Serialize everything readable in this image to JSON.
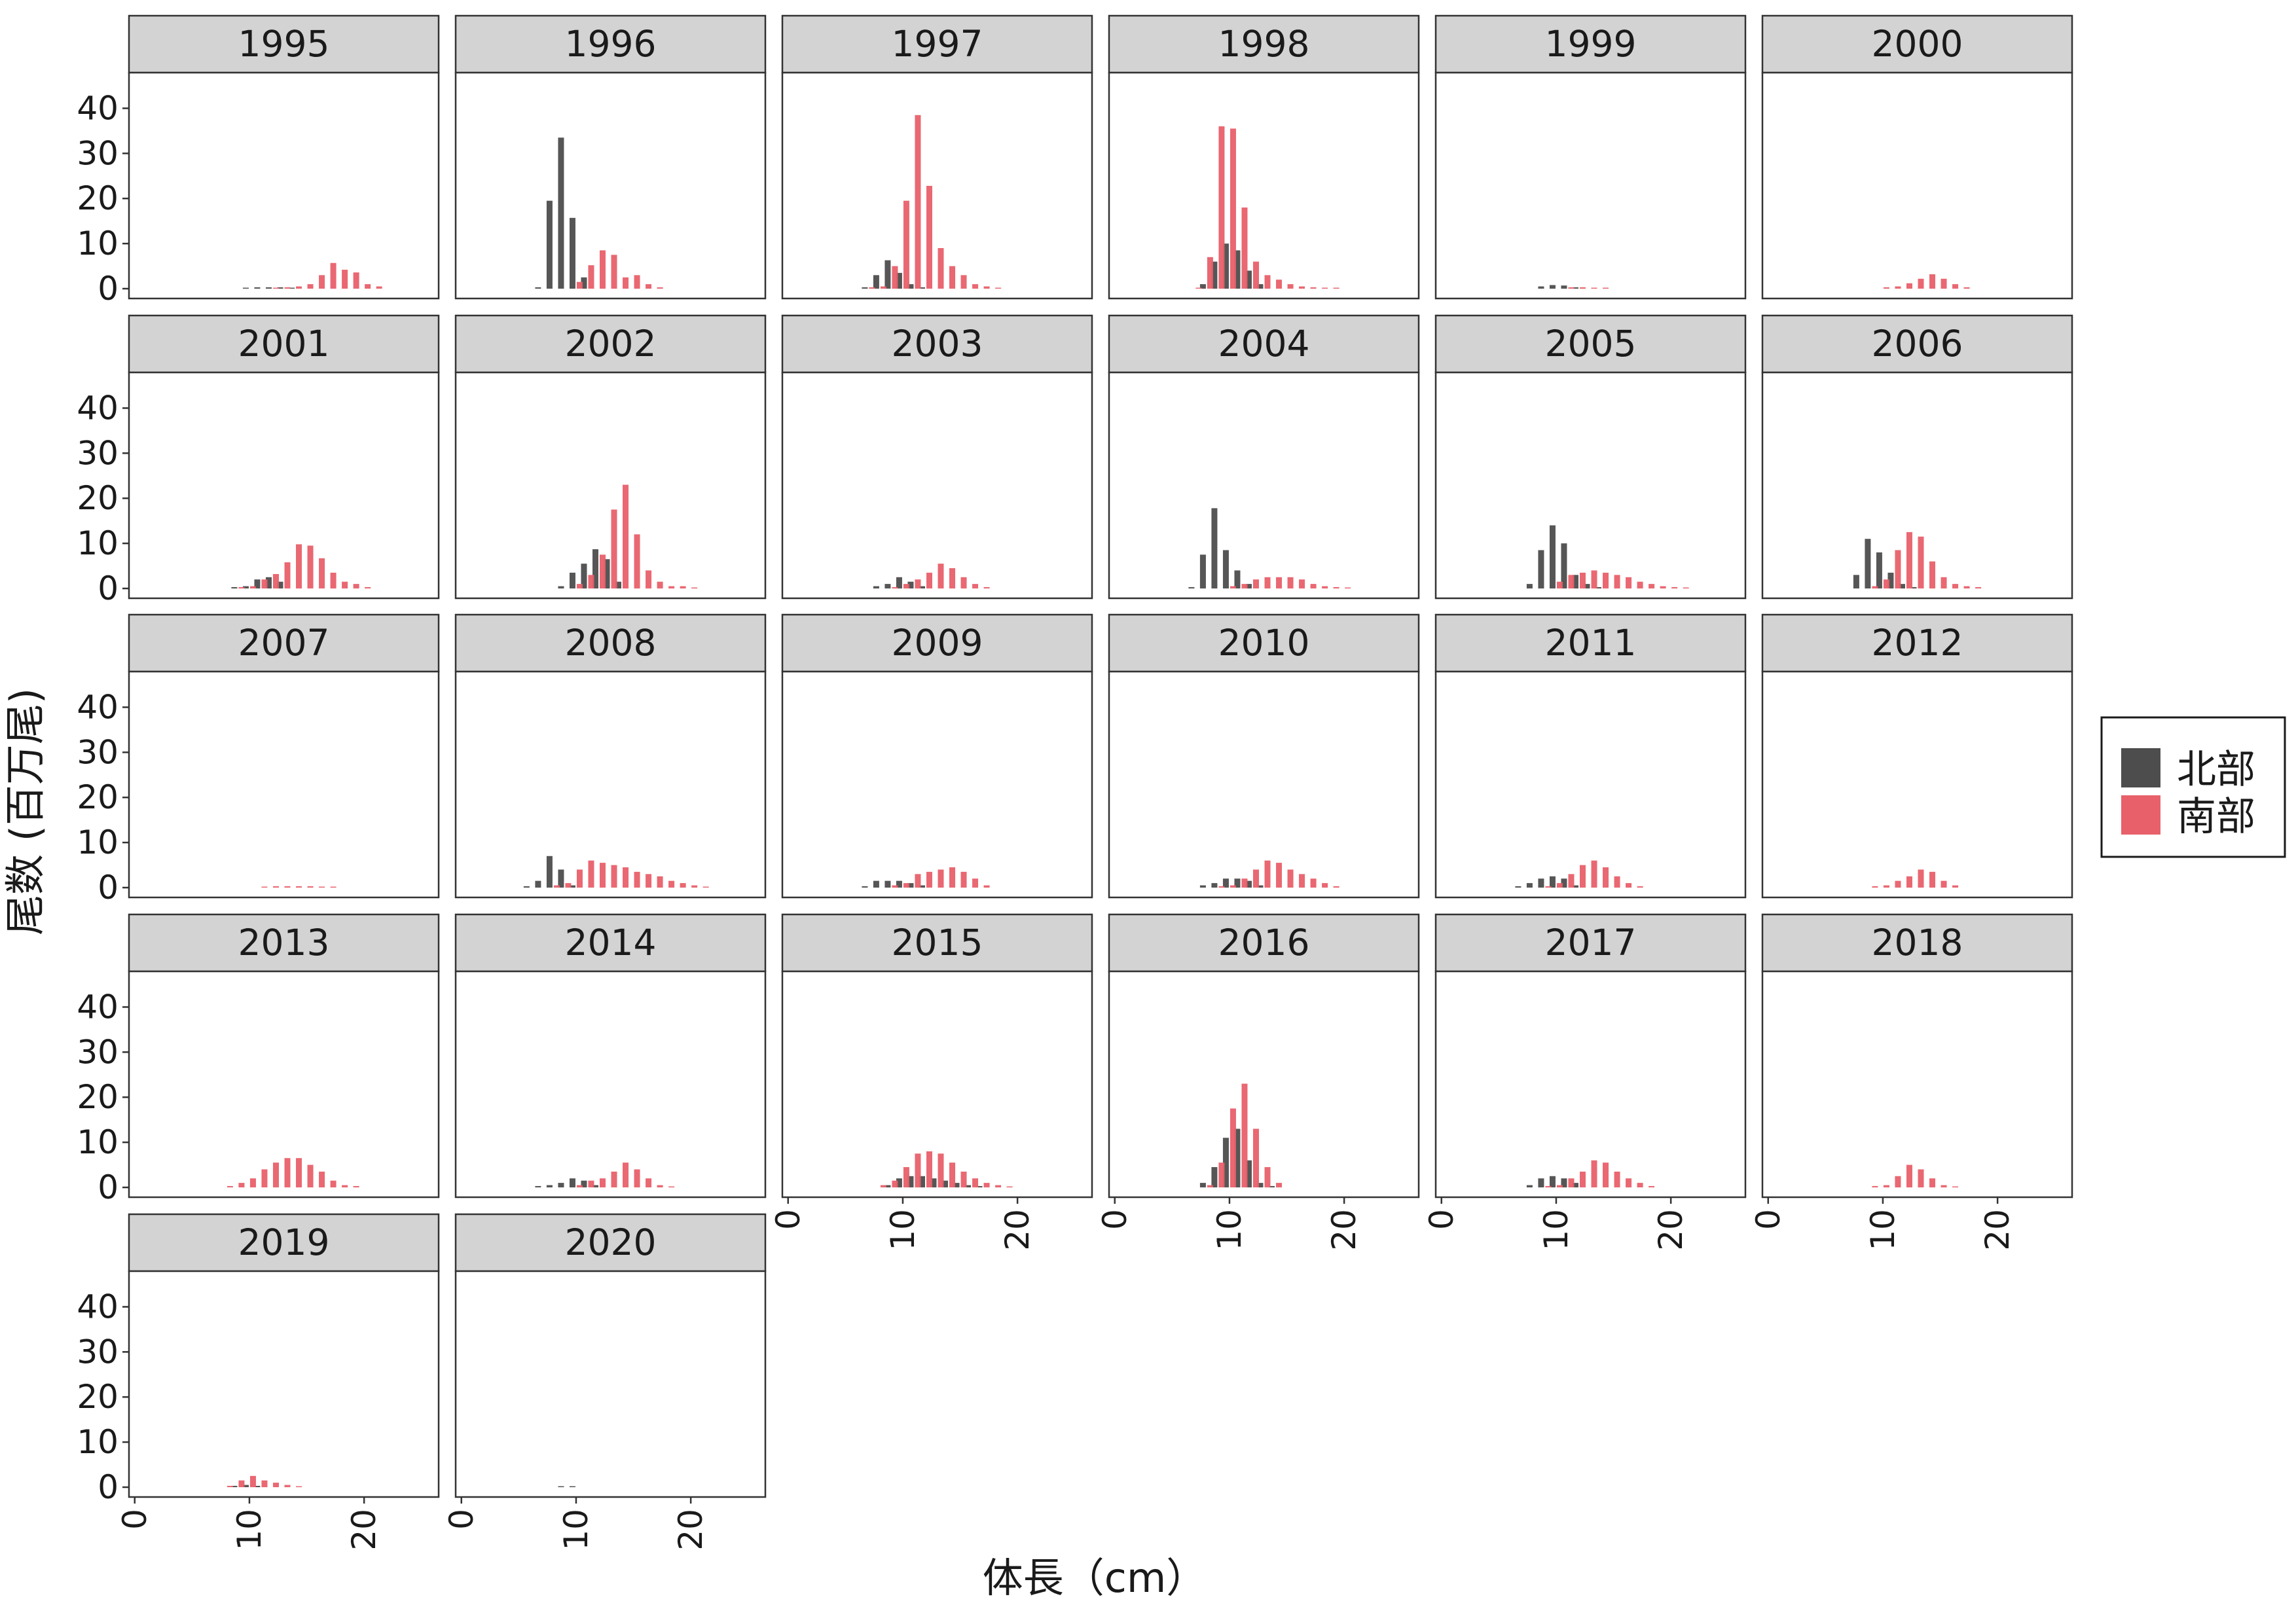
{
  "chart_data": {
    "type": "bar",
    "xlabel": "体長（cm）",
    "ylabel": "尾数 (百万尾)",
    "ylim": [
      0,
      45
    ],
    "xlim": [
      -0.5,
      26.5
    ],
    "y_ticks": [
      "0",
      "10",
      "20",
      "30",
      "40"
    ],
    "x_ticks": [
      "0",
      "10",
      "20"
    ],
    "legend": {
      "position": "right",
      "entries": [
        "北部",
        "南部"
      ]
    },
    "series_colors": {
      "北部": "#4d4d4d",
      "南部": "#e8606a"
    },
    "grid": false,
    "panels": [
      {
        "year": "1995",
        "north": {
          "x": [
            10,
            11,
            12,
            13,
            14
          ],
          "y": [
            0.2,
            0.3,
            0.3,
            0.3,
            0.2
          ]
        },
        "south": {
          "x": [
            12,
            13,
            14,
            15,
            16,
            17,
            18,
            19,
            20,
            21
          ],
          "y": [
            0.2,
            0.3,
            0.5,
            1,
            3,
            5.7,
            4.2,
            3.6,
            1,
            0.5
          ]
        }
      },
      {
        "year": "1996",
        "north": {
          "x": [
            7,
            8,
            9,
            10,
            11
          ],
          "y": [
            0.3,
            19.5,
            33.5,
            15.7,
            2.5
          ]
        },
        "south": {
          "x": [
            10,
            11,
            12,
            13,
            14,
            15,
            16,
            17
          ],
          "y": [
            1.5,
            5.2,
            8.5,
            7.5,
            2.5,
            3,
            1,
            0.3
          ]
        }
      },
      {
        "year": "1997",
        "north": {
          "x": [
            7,
            8,
            9,
            10,
            11,
            12
          ],
          "y": [
            0.3,
            3,
            6.3,
            3.5,
            1,
            0.3
          ]
        },
        "south": {
          "x": [
            7,
            8,
            9,
            10,
            11,
            12,
            13,
            14,
            15,
            16,
            17,
            18
          ],
          "y": [
            0.3,
            0.5,
            5,
            19.5,
            38.5,
            22.8,
            9,
            5,
            3,
            1,
            0.5,
            0.2
          ]
        }
      },
      {
        "year": "1998",
        "north": {
          "x": [
            8,
            9,
            10,
            11,
            12,
            13
          ],
          "y": [
            1,
            6,
            10,
            8.5,
            4,
            1
          ]
        },
        "south": {
          "x": [
            7,
            8,
            9,
            10,
            11,
            12,
            13,
            14,
            15,
            16,
            17,
            18,
            19
          ],
          "y": [
            0.2,
            7,
            36,
            35.5,
            18,
            6,
            3,
            2,
            1,
            0.5,
            0.3,
            0.2,
            0.1
          ]
        }
      },
      {
        "year": "1999",
        "north": {
          "x": [
            9,
            10,
            11,
            12
          ],
          "y": [
            0.5,
            0.8,
            0.7,
            0.3
          ]
        },
        "south": {
          "x": [
            11,
            12,
            13,
            14
          ],
          "y": [
            0.3,
            0.3,
            0.2,
            0.1
          ]
        }
      },
      {
        "year": "2000",
        "north": {
          "x": [],
          "y": []
        },
        "south": {
          "x": [
            10,
            11,
            12,
            13,
            14,
            15,
            16,
            17
          ],
          "y": [
            0.3,
            0.5,
            1.2,
            2.2,
            3.2,
            2.2,
            1,
            0.3
          ]
        }
      },
      {
        "year": "2001",
        "north": {
          "x": [
            9,
            10,
            11,
            12,
            13
          ],
          "y": [
            0.3,
            0.5,
            2,
            2.5,
            1.5
          ]
        },
        "south": {
          "x": [
            9,
            10,
            11,
            12,
            13,
            14,
            15,
            16,
            17,
            18,
            19,
            20
          ],
          "y": [
            0.3,
            0.5,
            2,
            3.2,
            5.8,
            9.8,
            9.5,
            6.7,
            3.5,
            1.5,
            1,
            0.3
          ]
        }
      },
      {
        "year": "2002",
        "north": {
          "x": [
            9,
            10,
            11,
            12,
            13,
            14
          ],
          "y": [
            0.5,
            3.5,
            5.5,
            8.7,
            6.5,
            1.5
          ]
        },
        "south": {
          "x": [
            10,
            11,
            12,
            13,
            14,
            15,
            16,
            17,
            18,
            19,
            20
          ],
          "y": [
            1,
            3,
            7.5,
            17.5,
            23,
            12,
            4,
            1.5,
            0.5,
            0.5,
            0.2
          ]
        }
      },
      {
        "year": "2003",
        "north": {
          "x": [
            8,
            9,
            10,
            11,
            12
          ],
          "y": [
            0.5,
            1,
            2.5,
            1.5,
            0.5
          ]
        },
        "south": {
          "x": [
            9,
            10,
            11,
            12,
            13,
            14,
            15,
            16,
            17
          ],
          "y": [
            0.3,
            1,
            2,
            3.5,
            5.5,
            4.5,
            2.5,
            1,
            0.3
          ]
        }
      },
      {
        "year": "2004",
        "north": {
          "x": [
            7,
            8,
            9,
            10,
            11,
            12
          ],
          "y": [
            0.3,
            7.5,
            17.8,
            8.5,
            4,
            1
          ]
        },
        "south": {
          "x": [
            10,
            11,
            12,
            13,
            14,
            15,
            16,
            17,
            18,
            19,
            20
          ],
          "y": [
            0.5,
            1,
            2,
            2.5,
            2.5,
            2.5,
            2,
            1,
            0.5,
            0.3,
            0.2
          ]
        }
      },
      {
        "year": "2005",
        "north": {
          "x": [
            8,
            9,
            10,
            11,
            12,
            13,
            14
          ],
          "y": [
            1,
            8.5,
            14,
            10,
            3,
            1,
            0.3
          ]
        },
        "south": {
          "x": [
            10,
            11,
            12,
            13,
            14,
            15,
            16,
            17,
            18,
            19,
            20,
            21
          ],
          "y": [
            1.5,
            3,
            3.5,
            4,
            3.5,
            3,
            2.5,
            1.5,
            1,
            0.5,
            0.3,
            0.2
          ]
        }
      },
      {
        "year": "2006",
        "north": {
          "x": [
            8,
            9,
            10,
            11,
            12,
            13
          ],
          "y": [
            3,
            11,
            8,
            3.5,
            1,
            0.3
          ]
        },
        "south": {
          "x": [
            9,
            10,
            11,
            12,
            13,
            14,
            15,
            16,
            17,
            18
          ],
          "y": [
            0.5,
            2,
            8.5,
            12.5,
            11.5,
            6,
            2.5,
            1,
            0.5,
            0.3
          ]
        }
      },
      {
        "year": "2007",
        "north": {
          "x": [],
          "y": []
        },
        "south": {
          "x": [
            11,
            12,
            13,
            14,
            15,
            16,
            17
          ],
          "y": [
            0.2,
            0.3,
            0.3,
            0.3,
            0.3,
            0.2,
            0.1
          ]
        }
      },
      {
        "year": "2008",
        "north": {
          "x": [
            6,
            7,
            8,
            9,
            10
          ],
          "y": [
            0.3,
            1.5,
            7,
            4,
            0.5
          ]
        },
        "south": {
          "x": [
            8,
            9,
            10,
            11,
            12,
            13,
            14,
            15,
            16,
            17,
            18,
            19,
            20,
            21
          ],
          "y": [
            0.5,
            1,
            4,
            6,
            5.5,
            5,
            4.5,
            3.5,
            3,
            2.5,
            1.5,
            1,
            0.5,
            0.2
          ]
        }
      },
      {
        "year": "2009",
        "north": {
          "x": [
            7,
            8,
            9,
            10,
            11,
            12
          ],
          "y": [
            0.3,
            1.5,
            1.5,
            1.5,
            1,
            0.5
          ]
        },
        "south": {
          "x": [
            9,
            10,
            11,
            12,
            13,
            14,
            15,
            16,
            17
          ],
          "y": [
            0.5,
            1,
            3,
            3.5,
            4,
            4.5,
            3.5,
            2,
            0.5
          ]
        }
      },
      {
        "year": "2010",
        "north": {
          "x": [
            8,
            9,
            10,
            11,
            12,
            13
          ],
          "y": [
            0.5,
            1,
            2,
            2,
            1.5,
            0.5
          ]
        },
        "south": {
          "x": [
            9,
            10,
            11,
            12,
            13,
            14,
            15,
            16,
            17,
            18,
            19
          ],
          "y": [
            0.3,
            0.5,
            2,
            4,
            6,
            5.5,
            4,
            3,
            2,
            1,
            0.3
          ]
        }
      },
      {
        "year": "2011",
        "north": {
          "x": [
            7,
            8,
            9,
            10,
            11,
            12
          ],
          "y": [
            0.3,
            1,
            2,
            2.5,
            2,
            0.5
          ]
        },
        "south": {
          "x": [
            9,
            10,
            11,
            12,
            13,
            14,
            15,
            16,
            17
          ],
          "y": [
            0.3,
            1,
            3,
            5,
            6,
            4.5,
            2.5,
            1,
            0.3
          ]
        }
      },
      {
        "year": "2012",
        "north": {
          "x": [],
          "y": []
        },
        "south": {
          "x": [
            9,
            10,
            11,
            12,
            13,
            14,
            15,
            16
          ],
          "y": [
            0.3,
            0.5,
            1.5,
            2.5,
            4,
            3.5,
            1.5,
            0.5
          ]
        }
      },
      {
        "year": "2013",
        "north": {
          "x": [],
          "y": []
        },
        "south": {
          "x": [
            8,
            9,
            10,
            11,
            12,
            13,
            14,
            15,
            16,
            17,
            18,
            19
          ],
          "y": [
            0.3,
            1,
            2,
            4,
            5.5,
            6.5,
            6.5,
            5,
            3.5,
            1.5,
            0.5,
            0.3
          ]
        }
      },
      {
        "year": "2014",
        "north": {
          "x": [
            7,
            8,
            9,
            10,
            11,
            12
          ],
          "y": [
            0.3,
            0.5,
            1,
            2,
            1.5,
            0.5
          ]
        },
        "south": {
          "x": [
            10,
            11,
            12,
            13,
            14,
            15,
            16,
            17,
            18
          ],
          "y": [
            0.5,
            1.5,
            2,
            3.5,
            5.5,
            4,
            2,
            0.5,
            0.2
          ]
        }
      },
      {
        "year": "2015",
        "north": {
          "x": [
            9,
            10,
            11,
            12,
            13,
            14,
            15,
            16,
            17
          ],
          "y": [
            0.5,
            2,
            2.5,
            2.5,
            2,
            1.5,
            1,
            0.5,
            0.3
          ]
        },
        "south": {
          "x": [
            8,
            9,
            10,
            11,
            12,
            13,
            14,
            15,
            16,
            17,
            18,
            19
          ],
          "y": [
            0.5,
            1.5,
            4.5,
            7.5,
            8,
            7.5,
            5.5,
            3.5,
            2,
            1,
            0.5,
            0.2
          ]
        }
      },
      {
        "year": "2016",
        "north": {
          "x": [
            8,
            9,
            10,
            11,
            12,
            13,
            14
          ],
          "y": [
            1,
            4.5,
            11,
            13,
            6,
            1,
            0.3
          ]
        },
        "south": {
          "x": [
            8,
            9,
            10,
            11,
            12,
            13,
            14
          ],
          "y": [
            0.5,
            5.5,
            17.5,
            23,
            13,
            4.5,
            1
          ]
        }
      },
      {
        "year": "2017",
        "north": {
          "x": [
            8,
            9,
            10,
            11,
            12
          ],
          "y": [
            0.5,
            2,
            2.5,
            2,
            1
          ]
        },
        "south": {
          "x": [
            9,
            10,
            11,
            12,
            13,
            14,
            15,
            16,
            17,
            18
          ],
          "y": [
            0.3,
            0.5,
            2,
            3.5,
            6,
            5.5,
            3.5,
            2,
            1,
            0.3
          ]
        }
      },
      {
        "year": "2018",
        "north": {
          "x": [],
          "y": []
        },
        "south": {
          "x": [
            9,
            10,
            11,
            12,
            13,
            14,
            15,
            16
          ],
          "y": [
            0.3,
            0.5,
            2.5,
            5,
            4,
            2,
            0.5,
            0.2
          ]
        }
      },
      {
        "year": "2019",
        "north": {
          "x": [
            9,
            10,
            11
          ],
          "y": [
            0.3,
            0.5,
            0.3
          ]
        },
        "south": {
          "x": [
            8,
            9,
            10,
            11,
            12,
            13,
            14
          ],
          "y": [
            0.3,
            1.5,
            2.5,
            1.5,
            1,
            0.5,
            0.2
          ]
        }
      },
      {
        "year": "2020",
        "north": {
          "x": [
            9,
            10
          ],
          "y": [
            0.1,
            0.1
          ]
        },
        "south": {
          "x": [],
          "y": []
        }
      }
    ]
  }
}
